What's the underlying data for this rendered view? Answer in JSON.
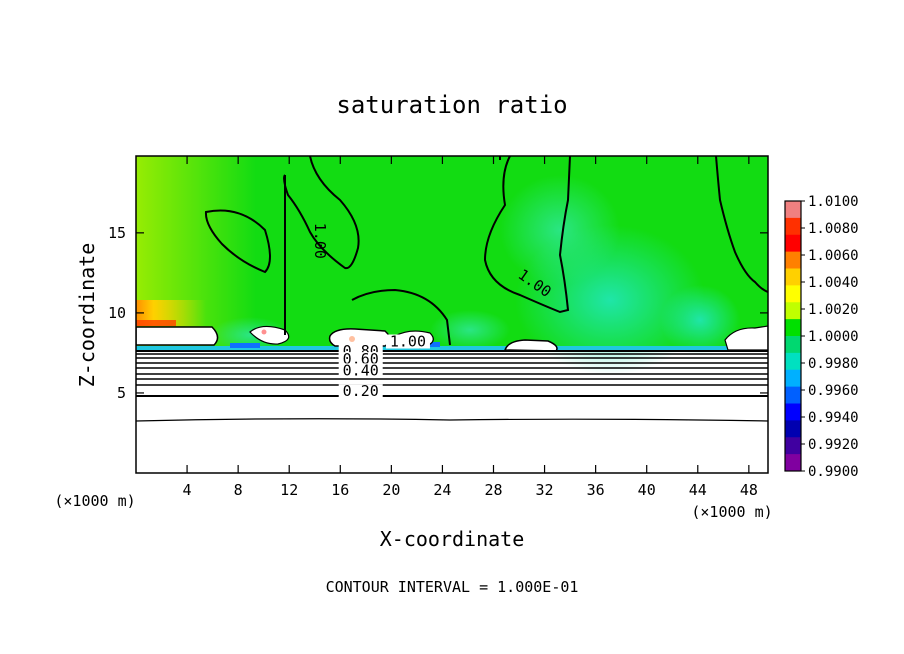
{
  "chart_data": {
    "type": "heatmap",
    "title": "saturation ratio",
    "xlabel": "X-coordinate",
    "ylabel": "Z-coordinate",
    "x_unit_label": "(×1000 m)",
    "x_ticks": [
      4,
      8,
      12,
      16,
      20,
      24,
      28,
      32,
      36,
      40,
      44,
      48
    ],
    "y_ticks": [
      5,
      10,
      15
    ],
    "xlim": [
      0,
      49.5
    ],
    "ylim": [
      0,
      19.8
    ],
    "colorbar": {
      "labels": [
        "1.0100",
        "1.0080",
        "1.0060",
        "1.0040",
        "1.0020",
        "1.0000",
        "0.9980",
        "0.9960",
        "0.9940",
        "0.9920",
        "0.9900"
      ],
      "colors": [
        "#f08080",
        "#ff3000",
        "#ff0000",
        "#ff8000",
        "#ffd000",
        "#ffff00",
        "#c0ff00",
        "#00e000",
        "#00d870",
        "#00e0c0",
        "#00b0ff",
        "#0060ff",
        "#0000ff",
        "#0000b0",
        "#4000a0",
        "#8000a0"
      ]
    },
    "contour_labels": [
      {
        "text": "1.00",
        "x": 14,
        "z": 14.5
      },
      {
        "text": "1.00",
        "x": 31,
        "z": 11.6
      },
      {
        "text": "1.00",
        "x": 21.3,
        "z": 7.9
      },
      {
        "text": "0.80",
        "x": 17.6,
        "z": 7.3
      },
      {
        "text": "0.60",
        "x": 17.6,
        "z": 6.8
      },
      {
        "text": "0.40",
        "x": 17.6,
        "z": 6.1
      },
      {
        "text": "0.20",
        "x": 17.6,
        "z": 4.8
      }
    ],
    "annotation": "CONTOUR INTERVAL = 1.000E-01"
  }
}
